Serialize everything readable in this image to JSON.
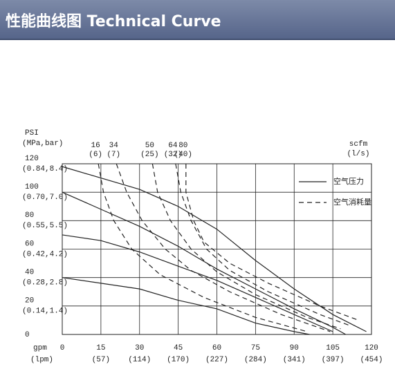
{
  "header": {
    "title": "性能曲线图 Technical Curve"
  },
  "chart_data": {
    "type": "line",
    "y_label": "PSI",
    "y_sublabel": "(MPa,bar)",
    "x_label": "gpm",
    "x_sublabel": "(lpm)",
    "top_label": "scfm",
    "top_sublabel": "(l/s)",
    "xlim": [
      0,
      120
    ],
    "ylim": [
      0,
      120
    ],
    "xticks": [
      0,
      15,
      30,
      45,
      60,
      75,
      90,
      105,
      120
    ],
    "xtick_sublabels": [
      null,
      "(57)",
      "(114)",
      "(170)",
      "(227)",
      "(284)",
      "(341)",
      "(397)",
      "(454)"
    ],
    "yticks": [
      0,
      20,
      40,
      60,
      80,
      100,
      120
    ],
    "ytick_sublabels": [
      null,
      "(0.14,1.4)",
      "(0.28,2.8)",
      "(0.42,4.2)",
      "(0.55,5.5)",
      "(0.70,7.0)",
      "(0.84,8.4)"
    ],
    "grid": true,
    "color": "#222222",
    "legend": [
      {
        "label": "空气压力",
        "style": "solid"
      },
      {
        "label": "空气消耗量",
        "style": "dashed"
      }
    ],
    "series": [
      {
        "style": "solid",
        "x": [
          0,
          30,
          45,
          60,
          75,
          90,
          105,
          118
        ],
        "values": [
          118,
          102,
          90,
          74,
          52,
          32,
          14,
          2
        ]
      },
      {
        "style": "solid",
        "x": [
          0,
          15,
          30,
          45,
          60,
          75,
          90,
          105,
          110
        ],
        "values": [
          100,
          88,
          76,
          62,
          46,
          32,
          18,
          5,
          0
        ]
      },
      {
        "style": "solid",
        "x": [
          0,
          15,
          30,
          45,
          60,
          75,
          90,
          105
        ],
        "values": [
          70,
          66,
          58,
          48,
          38,
          26,
          14,
          2
        ]
      },
      {
        "style": "solid",
        "x": [
          0,
          15,
          30,
          45,
          60,
          75,
          90,
          96
        ],
        "values": [
          40,
          36,
          32,
          24,
          18,
          8,
          2,
          0
        ]
      },
      {
        "style": "dashed",
        "scfm": 16,
        "scfm_sub": "(6)",
        "x": [
          14,
          16,
          20,
          27,
          38,
          55,
          75,
          95
        ],
        "values": [
          120,
          100,
          80,
          60,
          42,
          26,
          12,
          2
        ]
      },
      {
        "style": "dashed",
        "scfm": 34,
        "scfm_sub": "(7)",
        "x": [
          21,
          25,
          31,
          40,
          50,
          65,
          85,
          104
        ],
        "values": [
          120,
          100,
          80,
          60,
          45,
          30,
          14,
          2
        ]
      },
      {
        "style": "dashed",
        "scfm": 50,
        "scfm_sub": "(25)",
        "x": [
          35,
          37,
          42,
          50,
          60,
          75,
          95,
          108
        ],
        "values": [
          120,
          100,
          80,
          60,
          44,
          28,
          12,
          4
        ]
      },
      {
        "style": "dashed",
        "scfm": 64,
        "scfm_sub": "(32)",
        "x": [
          44,
          46,
          50,
          56,
          65,
          80,
          100,
          112
        ],
        "values": [
          120,
          100,
          80,
          60,
          45,
          30,
          14,
          6
        ]
      },
      {
        "style": "dashed",
        "scfm": 80,
        "scfm_sub": "(40)",
        "x": [
          48,
          48,
          51,
          55,
          65,
          80,
          100,
          115
        ],
        "values": [
          120,
          100,
          80,
          65,
          50,
          36,
          20,
          10
        ]
      }
    ]
  }
}
